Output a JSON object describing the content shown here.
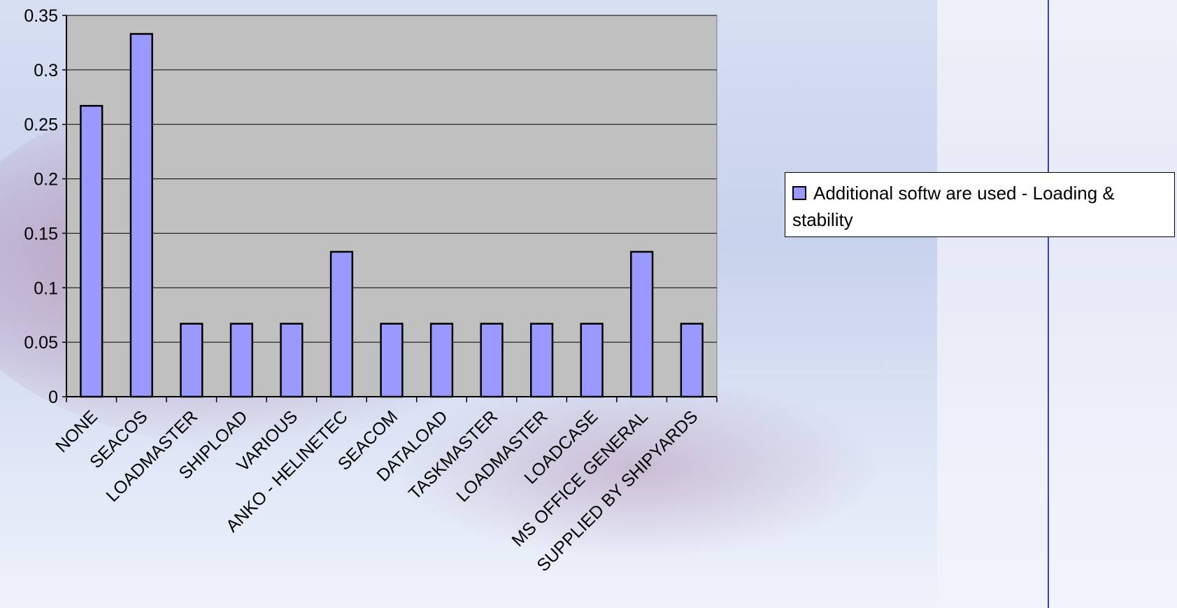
{
  "chart_data": {
    "type": "bar",
    "categories": [
      "NONE",
      "SEACOS",
      "LOADMASTER",
      "SHIPLOAD",
      "VARIOUS",
      "ANKO - HELINETEC",
      "SEACOM",
      "DATALOAD",
      "TASKMASTER",
      "LOADMASTER",
      "LOADCASE",
      "MS OFFICE GENERAL",
      "SUPPLIED BY SHIPYARDS"
    ],
    "series": [
      {
        "name": "Additional softw are used - Loading & stability",
        "values": [
          0.267,
          0.333,
          0.067,
          0.067,
          0.067,
          0.133,
          0.067,
          0.067,
          0.067,
          0.067,
          0.067,
          0.133,
          0.067
        ]
      }
    ],
    "title": "",
    "xlabel": "",
    "ylabel": "",
    "ylim": [
      0,
      0.35
    ],
    "yticks": [
      "0",
      "0.05",
      "0.1",
      "0.15",
      "0.2",
      "0.25",
      "0.3",
      "0.35"
    ],
    "grid": true,
    "legend_position": "right",
    "colors": {
      "bar": "#9999ff",
      "plot_bg": "#c0c0c0",
      "axis_line": "#000000"
    }
  },
  "legend": {
    "label": "Additional softw are used - Loading & stability"
  }
}
